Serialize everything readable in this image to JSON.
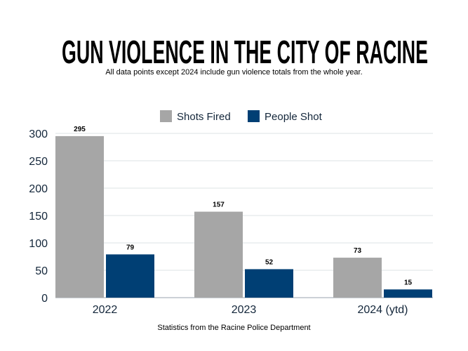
{
  "title": "GUN VIOLENCE IN THE CITY OF RACINE",
  "subtitle": "All data points except 2024 include gun violence totals from the whole year.",
  "source": "Statistics from the Racine Police Department",
  "chart_data": {
    "type": "bar",
    "categories": [
      "2022",
      "2023",
      "2024 (ytd)"
    ],
    "series": [
      {
        "name": "Shots Fired",
        "values": [
          295,
          157,
          73
        ],
        "color": "#a6a6a6"
      },
      {
        "name": "People Shot",
        "values": [
          79,
          52,
          15
        ],
        "color": "#003f74"
      }
    ],
    "yticks": [
      0,
      50,
      100,
      150,
      200,
      250,
      300
    ],
    "ylim": [
      0,
      300
    ],
    "grid": true,
    "legend": "top-center",
    "data_labels": true
  }
}
